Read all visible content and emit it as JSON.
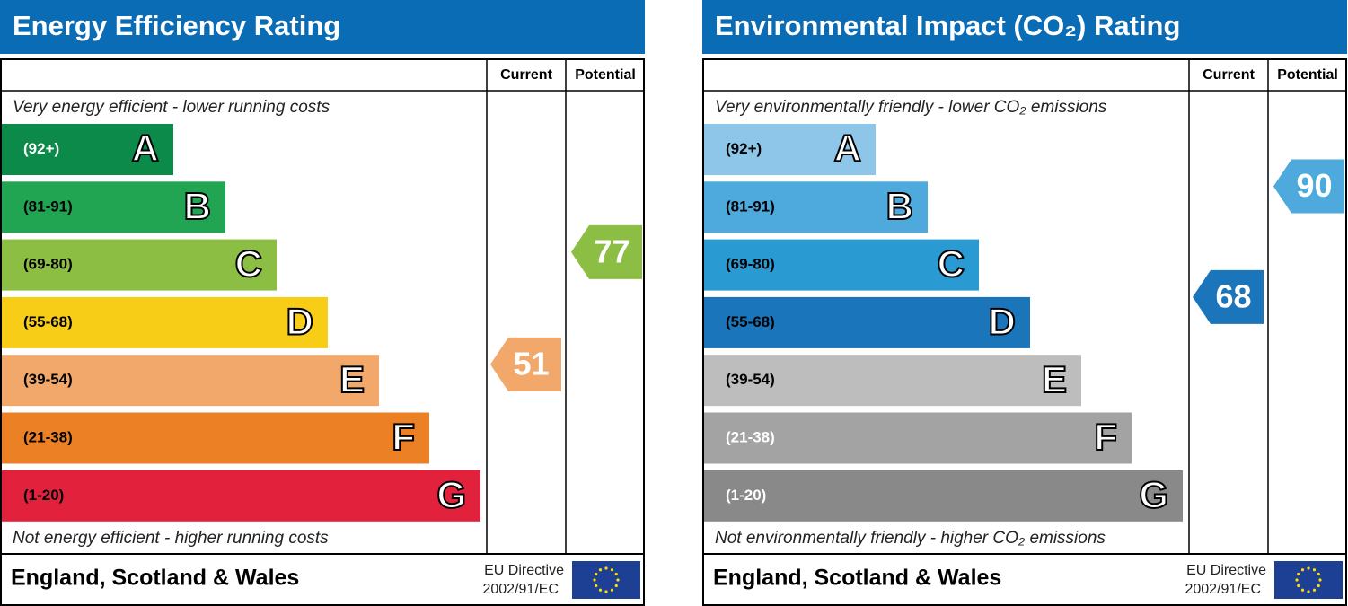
{
  "panels": [
    {
      "title": "Energy Efficiency Rating",
      "title_color": "#0b6cb6",
      "header_current": "Current",
      "header_potential": "Potential",
      "top_note": "Very energy efficient - lower running costs",
      "bottom_note": "Not energy efficient - higher running costs",
      "bands": [
        {
          "range": "(92+)",
          "letter": "A",
          "color": "#0c8a4a",
          "text_color": "#ffffff"
        },
        {
          "range": "(81-91)",
          "letter": "B",
          "color": "#21a553",
          "text_color": "#000000"
        },
        {
          "range": "(69-80)",
          "letter": "C",
          "color": "#8cbe43",
          "text_color": "#000000"
        },
        {
          "range": "(55-68)",
          "letter": "D",
          "color": "#f8cd17",
          "text_color": "#000000"
        },
        {
          "range": "(39-54)",
          "letter": "E",
          "color": "#f1a86a",
          "text_color": "#000000"
        },
        {
          "range": "(21-38)",
          "letter": "F",
          "color": "#ec8025",
          "text_color": "#000000"
        },
        {
          "range": "(1-20)",
          "letter": "G",
          "color": "#e2213c",
          "text_color": "#000000"
        }
      ],
      "current": 51,
      "current_color": "#f1a86a",
      "potential": 77,
      "potential_color": "#8cbe43",
      "footer": "England, Scotland & Wales",
      "directive": "EU Directive",
      "directive_code": "2002/91/EC"
    },
    {
      "title": "Environmental Impact (CO₂) Rating",
      "title_color": "#0b6cb6",
      "header_current": "Current",
      "header_potential": "Potential",
      "top_note": "Very environmentally friendly - lower CO₂ emissions",
      "bottom_note": "Not environmentally friendly - higher CO₂ emissions",
      "bands": [
        {
          "range": "(92+)",
          "letter": "A",
          "color": "#8dc6e8",
          "text_color": "#000000"
        },
        {
          "range": "(81-91)",
          "letter": "B",
          "color": "#4ea9dc",
          "text_color": "#000000"
        },
        {
          "range": "(69-80)",
          "letter": "C",
          "color": "#2a9ad3",
          "text_color": "#000000"
        },
        {
          "range": "(55-68)",
          "letter": "D",
          "color": "#1b75bb",
          "text_color": "#000000"
        },
        {
          "range": "(39-54)",
          "letter": "E",
          "color": "#bdbdbd",
          "text_color": "#000000"
        },
        {
          "range": "(21-38)",
          "letter": "F",
          "color": "#a3a3a3",
          "text_color": "#ffffff"
        },
        {
          "range": "(1-20)",
          "letter": "G",
          "color": "#898989",
          "text_color": "#ffffff"
        }
      ],
      "current": 68,
      "current_color": "#1b75bb",
      "potential": 90,
      "potential_color": "#4ea9dc",
      "footer": "England, Scotland & Wales",
      "directive": "EU Directive",
      "directive_code": "2002/91/EC"
    }
  ]
}
